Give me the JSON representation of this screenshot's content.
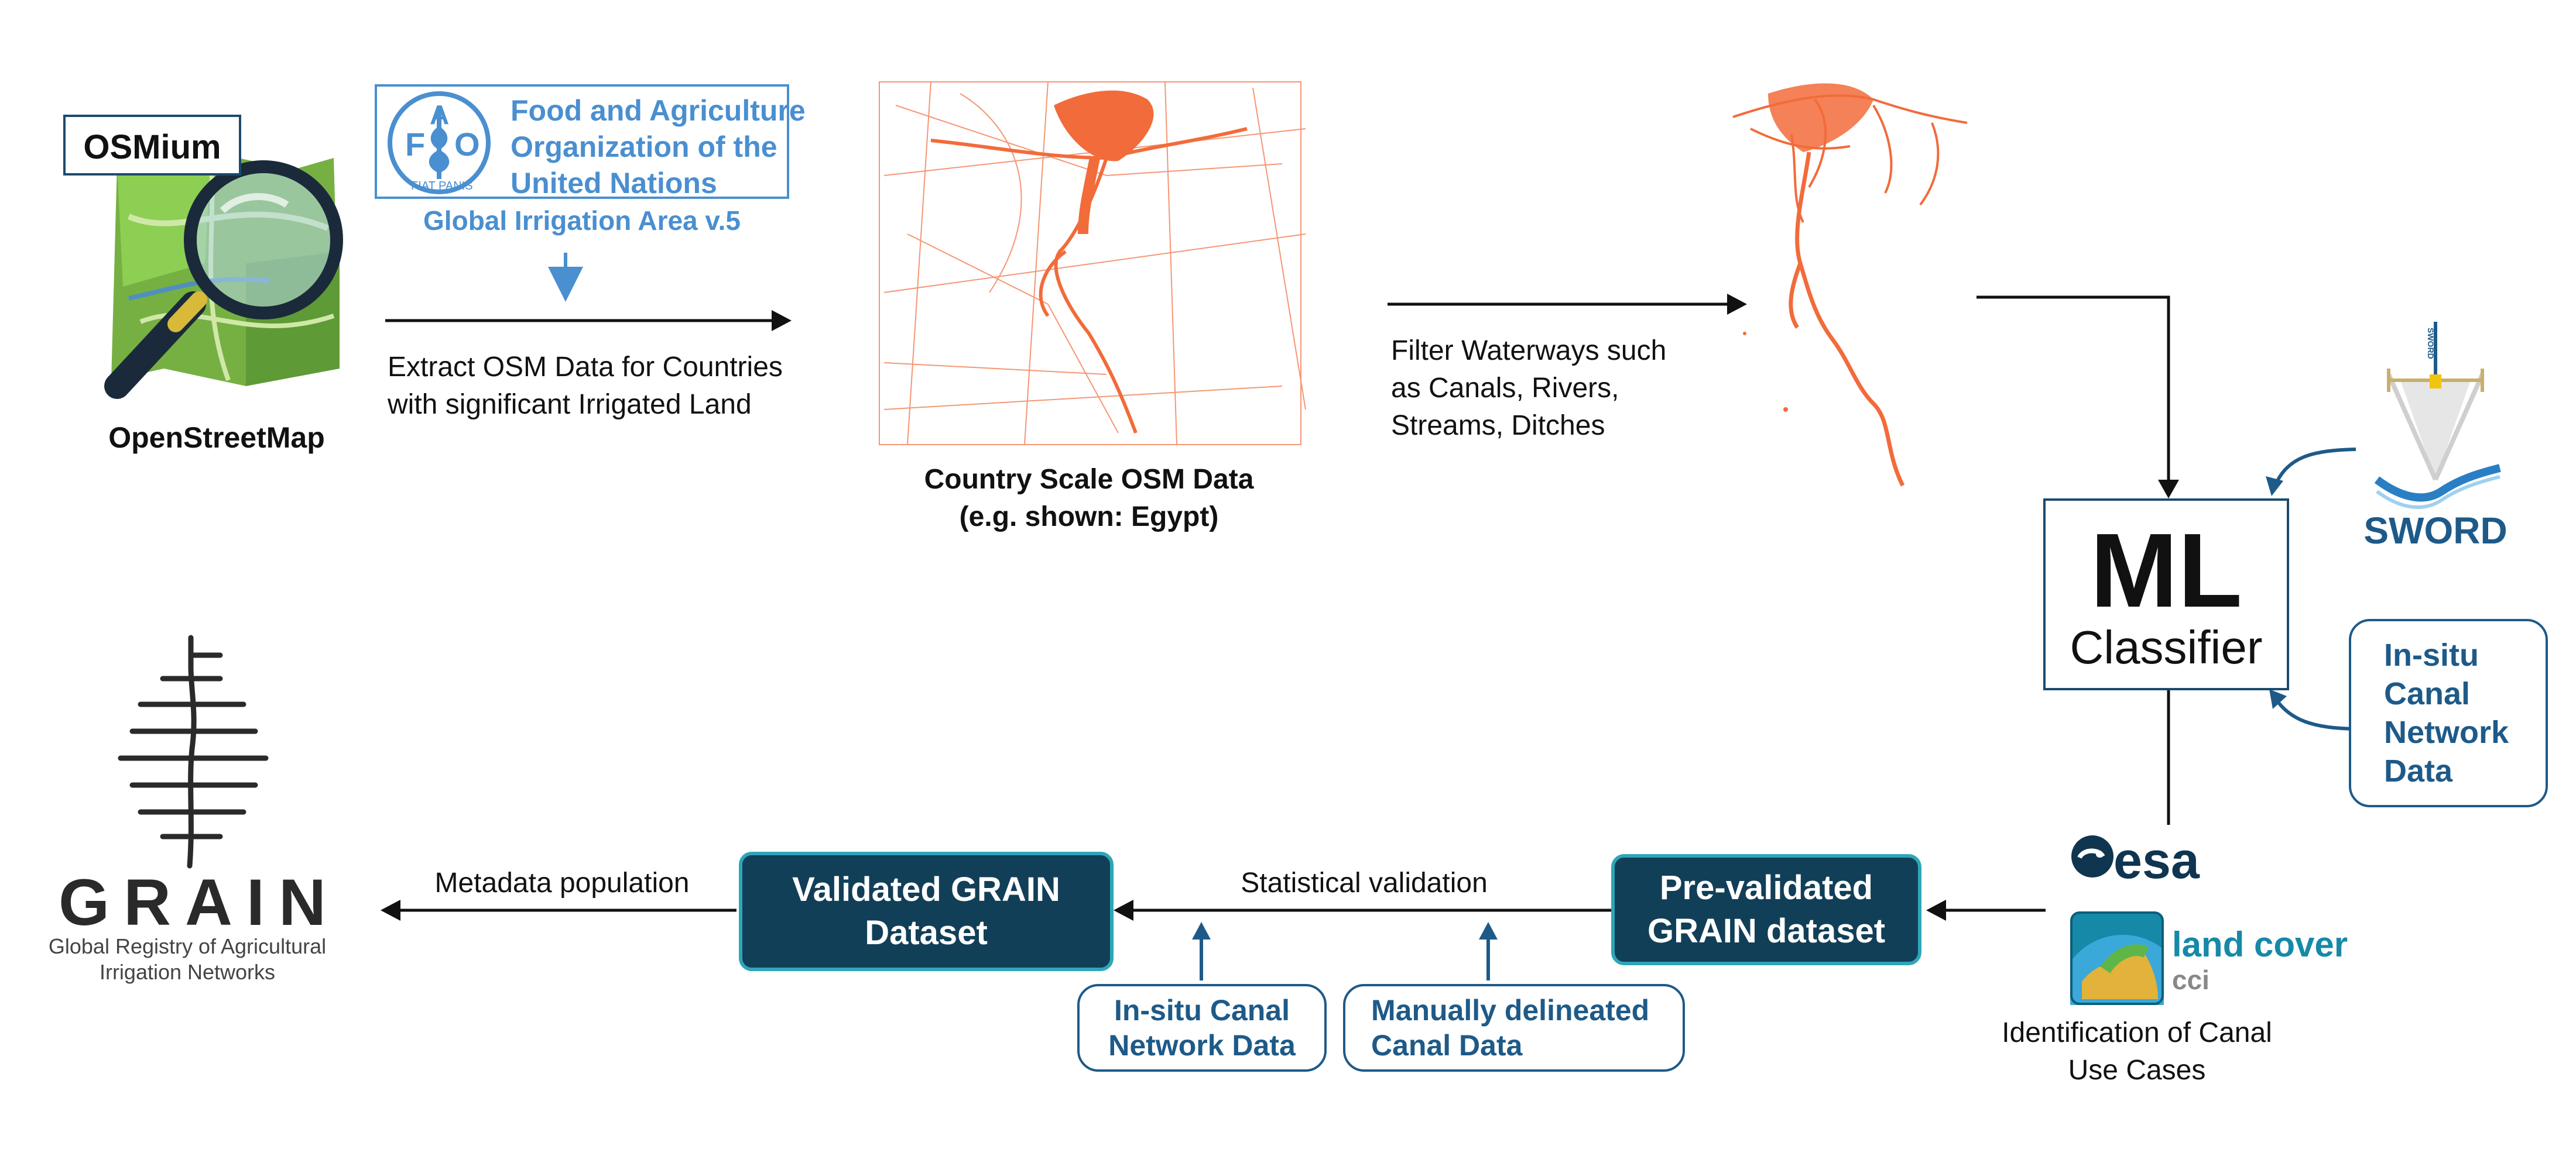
{
  "osm": {
    "tool_label": "OSMium",
    "source_label": "OpenStreetMap",
    "extract_text_1": "Extract OSM Data for Countries",
    "extract_text_2": "with significant Irrigated Land"
  },
  "fao": {
    "line1": "Food and Agriculture",
    "line2": "Organization of the",
    "line3": "United Nations",
    "logo_letters": [
      "F",
      "A",
      "O"
    ],
    "emblem_text": "FIAT PANIS",
    "dataset": "Global Irrigation Area v.5"
  },
  "country_data": {
    "line1": "Country Scale OSM Data",
    "line2": "(e.g. shown: Egypt)"
  },
  "filter": {
    "line1": "Filter Waterways such",
    "line2": "as Canals, Rivers,",
    "line3": "Streams, Ditches"
  },
  "classifier": {
    "title": "ML",
    "subtitle": "Classifier"
  },
  "sword": {
    "label": "SWORD",
    "logo_text": "SWORD"
  },
  "insitu_right": {
    "lines": [
      "In-situ",
      "Canal",
      "Network",
      "Data"
    ]
  },
  "identification": {
    "esa_label": "esa",
    "landcover_label": "land cover",
    "cci_label": "cci",
    "line1": "Identification of Canal",
    "line2": "Use Cases"
  },
  "prevalidated": {
    "line1": "Pre-validated",
    "line2": "GRAIN dataset"
  },
  "statistical_validation": "Statistical validation",
  "validated": {
    "line1": "Validated GRAIN",
    "line2": "Dataset"
  },
  "insitu_bottom": {
    "line1": "In-situ Canal",
    "line2": "Network Data"
  },
  "manual": {
    "line1": "Manually delineated",
    "line2": "Canal Data"
  },
  "metadata": "Metadata population",
  "grain": {
    "word": "GRAIN",
    "sub1": "Global Registry of Agricultural",
    "sub2": "Irrigation Networks"
  },
  "colors": {
    "dark_box": "#123f58",
    "box_border": "#2ea6b8",
    "blue_text": "#1e5a88",
    "fao_blue": "#4a8fd0",
    "osm_orange": "#f26b3a"
  }
}
